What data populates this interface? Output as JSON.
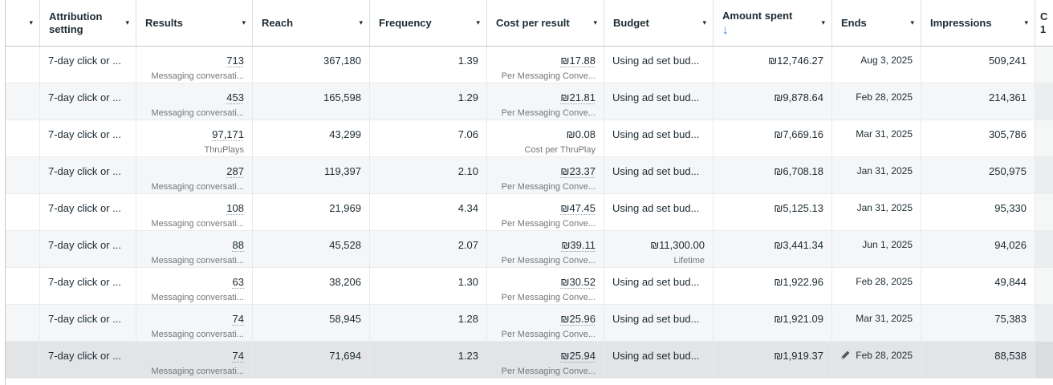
{
  "colors": {
    "sort_arrow_blue": "#1877f2"
  },
  "icons": {
    "column_menu_caret": "▾",
    "select_all_caret": "▾",
    "sort_descending": "↓",
    "edit_pencil": "pencil"
  },
  "table": {
    "header": {
      "columns": [
        {
          "id": "select",
          "label": "",
          "menu_caret": true
        },
        {
          "id": "attribution",
          "label": "Attribution setting",
          "menu_caret": true
        },
        {
          "id": "results",
          "label": "Results",
          "menu_caret": true
        },
        {
          "id": "reach",
          "label": "Reach",
          "menu_caret": true
        },
        {
          "id": "frequency",
          "label": "Frequency",
          "menu_caret": true
        },
        {
          "id": "cost_per_result",
          "label": "Cost per result",
          "menu_caret": true
        },
        {
          "id": "budget",
          "label": "Budget",
          "menu_caret": true
        },
        {
          "id": "amount_spent",
          "label": "Amount spent",
          "menu_caret": true,
          "sorted": "desc"
        },
        {
          "id": "ends",
          "label": "Ends",
          "menu_caret": true
        },
        {
          "id": "impressions",
          "label": "Impressions",
          "menu_caret": true
        },
        {
          "id": "overflow",
          "label_lines": [
            "C",
            "1"
          ],
          "menu_caret": false
        }
      ]
    },
    "rows": [
      {
        "attribution": "7-day click or ...",
        "results": {
          "value": "713",
          "sub": "Messaging conversati...",
          "tooltip_underline": true
        },
        "reach": "367,180",
        "frequency": "1.39",
        "cost_per_result": {
          "value": "₪17.88",
          "sub": "Per Messaging Conve...",
          "tooltip_underline": true
        },
        "budget": {
          "value": "Using ad set bud...",
          "sub": "",
          "align": "left"
        },
        "amount_spent": "₪12,746.27",
        "ends": {
          "date": "Aug 3, 2025",
          "edit_pencil": false
        },
        "impressions": "509,241",
        "hovered": false
      },
      {
        "attribution": "7-day click or ...",
        "results": {
          "value": "453",
          "sub": "Messaging conversati...",
          "tooltip_underline": true
        },
        "reach": "165,598",
        "frequency": "1.29",
        "cost_per_result": {
          "value": "₪21.81",
          "sub": "Per Messaging Conve...",
          "tooltip_underline": true
        },
        "budget": {
          "value": "Using ad set bud...",
          "sub": "",
          "align": "left"
        },
        "amount_spent": "₪9,878.64",
        "ends": {
          "date": "Feb 28, 2025",
          "edit_pencil": false
        },
        "impressions": "214,361",
        "hovered": false
      },
      {
        "attribution": "7-day click or ...",
        "results": {
          "value": "97,171",
          "sub": "ThruPlays",
          "tooltip_underline": true
        },
        "reach": "43,299",
        "frequency": "7.06",
        "cost_per_result": {
          "value": "₪0.08",
          "sub": "Cost per ThruPlay",
          "tooltip_underline": false
        },
        "budget": {
          "value": "Using ad set bud...",
          "sub": "",
          "align": "left"
        },
        "amount_spent": "₪7,669.16",
        "ends": {
          "date": "Mar 31, 2025",
          "edit_pencil": false
        },
        "impressions": "305,786",
        "hovered": false
      },
      {
        "attribution": "7-day click or ...",
        "results": {
          "value": "287",
          "sub": "Messaging conversati...",
          "tooltip_underline": true
        },
        "reach": "119,397",
        "frequency": "2.10",
        "cost_per_result": {
          "value": "₪23.37",
          "sub": "Per Messaging Conve...",
          "tooltip_underline": true
        },
        "budget": {
          "value": "Using ad set bud...",
          "sub": "",
          "align": "left"
        },
        "amount_spent": "₪6,708.18",
        "ends": {
          "date": "Jan 31, 2025",
          "edit_pencil": false
        },
        "impressions": "250,975",
        "hovered": false
      },
      {
        "attribution": "7-day click or ...",
        "results": {
          "value": "108",
          "sub": "Messaging conversati...",
          "tooltip_underline": true
        },
        "reach": "21,969",
        "frequency": "4.34",
        "cost_per_result": {
          "value": "₪47.45",
          "sub": "Per Messaging Conve...",
          "tooltip_underline": true
        },
        "budget": {
          "value": "Using ad set bud...",
          "sub": "",
          "align": "left"
        },
        "amount_spent": "₪5,125.13",
        "ends": {
          "date": "Jan 31, 2025",
          "edit_pencil": false
        },
        "impressions": "95,330",
        "hovered": false
      },
      {
        "attribution": "7-day click or ...",
        "results": {
          "value": "88",
          "sub": "Messaging conversati...",
          "tooltip_underline": true
        },
        "reach": "45,528",
        "frequency": "2.07",
        "cost_per_result": {
          "value": "₪39.11",
          "sub": "Per Messaging Conve...",
          "tooltip_underline": true
        },
        "budget": {
          "value": "₪11,300.00",
          "sub": "Lifetime",
          "align": "right"
        },
        "amount_spent": "₪3,441.34",
        "ends": {
          "date": "Jun 1, 2025",
          "edit_pencil": false
        },
        "impressions": "94,026",
        "hovered": false
      },
      {
        "attribution": "7-day click or ...",
        "results": {
          "value": "63",
          "sub": "Messaging conversati...",
          "tooltip_underline": true
        },
        "reach": "38,206",
        "frequency": "1.30",
        "cost_per_result": {
          "value": "₪30.52",
          "sub": "Per Messaging Conve...",
          "tooltip_underline": true
        },
        "budget": {
          "value": "Using ad set bud...",
          "sub": "",
          "align": "left"
        },
        "amount_spent": "₪1,922.96",
        "ends": {
          "date": "Feb 28, 2025",
          "edit_pencil": false
        },
        "impressions": "49,844",
        "hovered": false
      },
      {
        "attribution": "7-day click or ...",
        "results": {
          "value": "74",
          "sub": "Messaging conversati...",
          "tooltip_underline": true
        },
        "reach": "58,945",
        "frequency": "1.28",
        "cost_per_result": {
          "value": "₪25.96",
          "sub": "Per Messaging Conve...",
          "tooltip_underline": true
        },
        "budget": {
          "value": "Using ad set bud...",
          "sub": "",
          "align": "left"
        },
        "amount_spent": "₪1,921.09",
        "ends": {
          "date": "Mar 31, 2025",
          "edit_pencil": false
        },
        "impressions": "75,383",
        "hovered": false
      },
      {
        "attribution": "7-day click or ...",
        "results": {
          "value": "74",
          "sub": "Messaging conversati...",
          "tooltip_underline": true
        },
        "reach": "71,694",
        "frequency": "1.23",
        "cost_per_result": {
          "value": "₪25.94",
          "sub": "Per Messaging Conve...",
          "tooltip_underline": true
        },
        "budget": {
          "value": "Using ad set bud...",
          "sub": "",
          "align": "left"
        },
        "amount_spent": "₪1,919.37",
        "ends": {
          "date": "Feb 28, 2025",
          "edit_pencil": true
        },
        "impressions": "88,538",
        "hovered": true
      }
    ]
  }
}
